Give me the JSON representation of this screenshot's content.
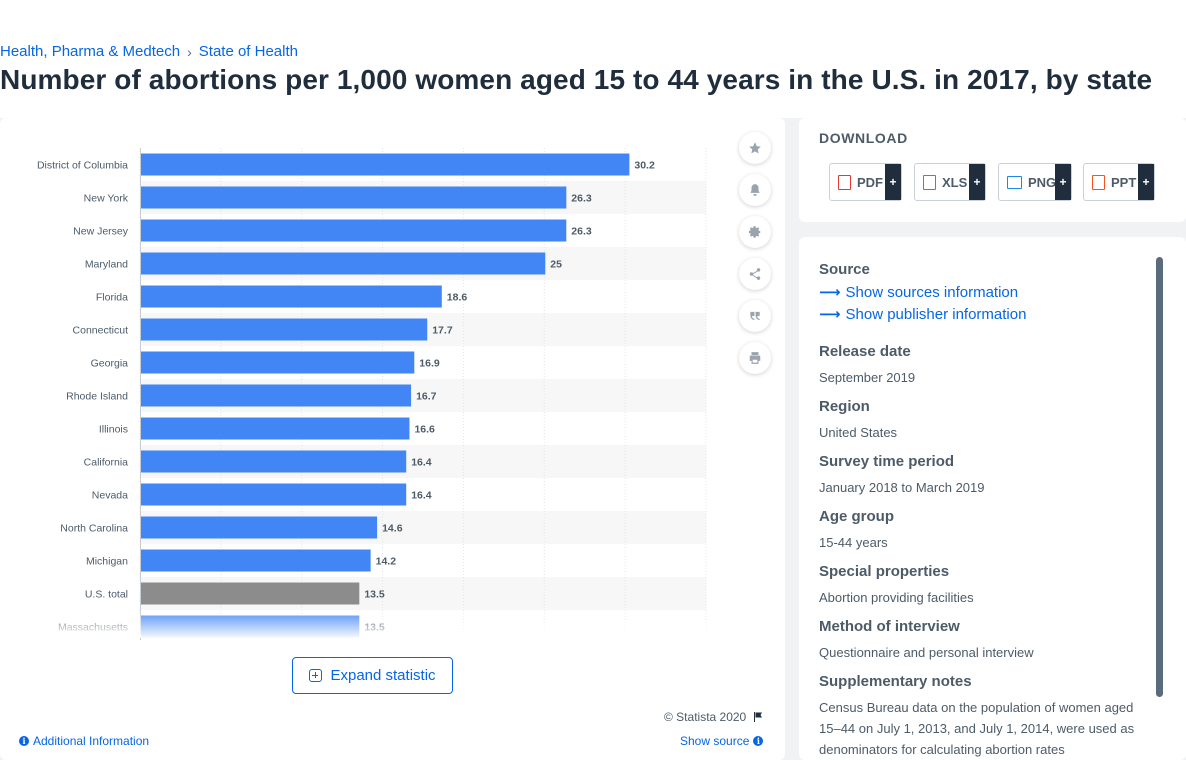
{
  "breadcrumb": [
    "Health, Pharma & Medtech",
    "State of Health"
  ],
  "breadcrumb_separator": "›",
  "page_title": "Number of abortions per 1,000 women aged 15 to 44 years in the U.S. in 2017, by state",
  "chart_data": {
    "type": "bar",
    "orientation": "horizontal",
    "title": "",
    "xlabel": "",
    "ylabel": "",
    "categories": [
      "District of Columbia",
      "New York",
      "New Jersey",
      "Maryland",
      "Florida",
      "Connecticut",
      "Georgia",
      "Rhode Island",
      "Illinois",
      "California",
      "Nevada",
      "North Carolina",
      "Michigan",
      "U.S. total",
      "Massachusetts"
    ],
    "values": [
      30.2,
      26.3,
      26.3,
      25,
      18.6,
      17.7,
      16.9,
      16.7,
      16.6,
      16.4,
      16.4,
      14.6,
      14.2,
      13.5,
      13.5
    ],
    "value_labels": [
      "30.2",
      "26.3",
      "26.3",
      "25",
      "18.6",
      "17.7",
      "16.9",
      "16.7",
      "16.6",
      "16.4",
      "16.4",
      "14.6",
      "14.2",
      "13.5",
      "13.5"
    ],
    "highlight_category": "U.S. total",
    "xlim": [
      0,
      35
    ],
    "gridlines": true,
    "colors": {
      "bar": "#4285f4",
      "highlight": "#8c8c8c",
      "label": "#4d5b68"
    }
  },
  "tools": [
    "star-icon",
    "bell-icon",
    "gear-icon",
    "share-icon",
    "quote-icon",
    "print-icon"
  ],
  "expand_label": "Expand statistic",
  "copyright": "© Statista 2020",
  "additional_info": "Additional Information",
  "show_source": "Show source",
  "download": {
    "title": "DOWNLOAD",
    "buttons": [
      {
        "label": "PDF",
        "color": "#e53935"
      },
      {
        "label": "XLS",
        "color": "#43a047"
      },
      {
        "label": "PNG",
        "color": "#1e88e5"
      },
      {
        "label": "PPT",
        "color": "#f4511e"
      }
    ],
    "plus": "+"
  },
  "info": {
    "source_heading": "Source",
    "show_sources": "Show sources information",
    "show_publisher": "Show publisher information",
    "release_heading": "Release date",
    "release_value": "September 2019",
    "region_heading": "Region",
    "region_value": "United States",
    "survey_heading": "Survey time period",
    "survey_value": "January 2018 to March 2019",
    "age_heading": "Age group",
    "age_value": "15-44 years",
    "special_heading": "Special properties",
    "special_value": "Abortion providing facilities",
    "method_heading": "Method of interview",
    "method_value": "Questionnaire and personal interview",
    "notes_heading": "Supplementary notes",
    "notes_value": "Census Bureau data on the population of women aged 15–44 on July 1, 2013, and July 1, 2014, were used as denominators for calculating abortion rates"
  },
  "colors": {
    "accent": "#0666e5"
  }
}
